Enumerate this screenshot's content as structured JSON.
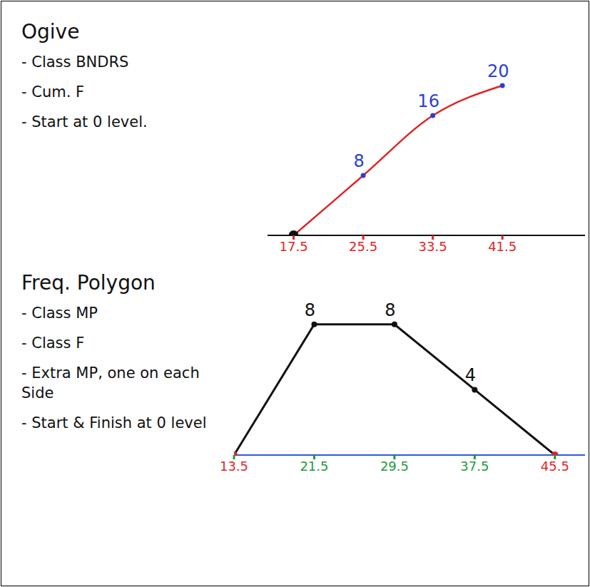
{
  "chart_data": [
    {
      "type": "line",
      "title": "Ogive",
      "annotations": [
        "- Class BNDRS",
        "- Cum. F",
        "- Start at 0 level."
      ],
      "x": [
        17.5,
        25.5,
        33.5,
        41.5
      ],
      "values": [
        0,
        8,
        16,
        20
      ],
      "value_labels": [
        null,
        "8",
        "16",
        "20"
      ],
      "data_labels": true,
      "xlim": [
        14.5,
        51
      ],
      "xticks": [
        17.5,
        25.5,
        33.5,
        41.5
      ],
      "ylim": [
        0,
        22
      ],
      "tick_labels": "x",
      "color": "#e02424",
      "marker": "circle",
      "line_style": "solid",
      "grid": false
    },
    {
      "type": "line",
      "title": "Freq. Polygon",
      "annotations": [
        "- Class MP",
        "- Class F",
        "- Extra MP, one on each Side",
        "- Start & Finish at 0 level"
      ],
      "x": [
        13.5,
        21.5,
        29.5,
        37.5,
        45.5
      ],
      "values": [
        0,
        8,
        8,
        4,
        0
      ],
      "value_labels": [
        null,
        "8",
        "8",
        "4",
        null
      ],
      "data_labels": true,
      "xlim": [
        13.5,
        48.5
      ],
      "xticks": [
        13.5,
        21.5,
        29.5,
        37.5,
        45.5
      ],
      "ylim": [
        0,
        10
      ],
      "tick_labels": "x",
      "color": "#111111",
      "marker": "circle",
      "line_style": "solid",
      "grid": false
    }
  ]
}
